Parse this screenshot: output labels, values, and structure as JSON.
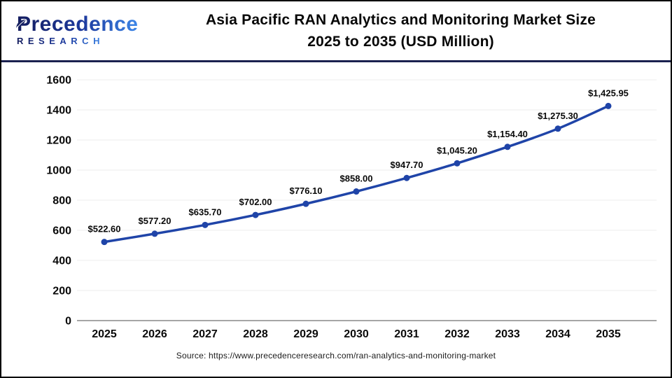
{
  "logo": {
    "name": "Precedence",
    "subname": "RESEARCH"
  },
  "title": {
    "line1": "Asia Pacific RAN Analytics and Monitoring Market Size",
    "line2": "2025 to 2035 (USD Million)"
  },
  "source": "Source: https://www.precedenceresearch.com/ran-analytics-and-monitoring-market",
  "chart_data": {
    "type": "line",
    "title": "Asia Pacific RAN Analytics and Monitoring Market Size 2025 to 2035 (USD Million)",
    "xlabel": "",
    "ylabel": "",
    "categories": [
      "2025",
      "2026",
      "2027",
      "2028",
      "2029",
      "2030",
      "2031",
      "2032",
      "2033",
      "2034",
      "2035"
    ],
    "series": [
      {
        "name": "Market Size (USD Million)",
        "values": [
          522.6,
          577.2,
          635.7,
          702.0,
          776.1,
          858.0,
          947.7,
          1045.2,
          1154.4,
          1275.3,
          1425.95
        ]
      }
    ],
    "point_labels": [
      "$522.60",
      "$577.20",
      "$635.70",
      "$702.00",
      "$776.10",
      "$858.00",
      "$947.70",
      "$1,045.20",
      "$1,154.40",
      "$1,275.30",
      "$1,425.95"
    ],
    "ylim": [
      0,
      1600
    ],
    "ytick_step": 200,
    "grid": true,
    "legend_position": "none",
    "line_color": "#1F44A8",
    "grid_color": "#ececec",
    "baseline_color": "#a6a6a6",
    "label_color": "#0a0a0a"
  }
}
